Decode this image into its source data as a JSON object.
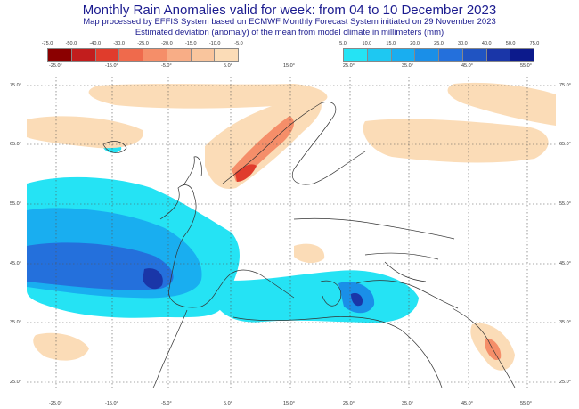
{
  "title": "Monthly Rain Anomalies valid for week: from 04 to 10 December 2023",
  "subtitle1": "Map processed by EFFIS System based on ECMWF Monthly Forecast System initiated on 29 November 2023",
  "subtitle2": "Estimated deviation (anomaly) of the mean from model climate in millimeters (mm)",
  "legend_negative": {
    "labels": [
      "-75.0",
      "-50.0",
      "-40.0",
      "-30.0",
      "-25.0",
      "-20.0",
      "-15.0",
      "-10.0",
      "-5.0"
    ],
    "colors": [
      "#8b0000",
      "#c21d1d",
      "#e03c2c",
      "#ef6a4c",
      "#f58e69",
      "#f8ad86",
      "#f9c59d",
      "#fbdcb7"
    ]
  },
  "legend_positive": {
    "labels": [
      "5.0",
      "10.0",
      "15.0",
      "20.0",
      "25.0",
      "30.0",
      "40.0",
      "50.0",
      "75.0"
    ],
    "colors": [
      "#25e3f4",
      "#1ec8f2",
      "#19aef0",
      "#1a8fe8",
      "#2470dc",
      "#2054c2",
      "#1a36a8",
      "#0c1a8c"
    ]
  },
  "axis": {
    "top_lons": [
      "-25.0°",
      "-15.0°",
      "-5.0°",
      "5.0°",
      "15.0°",
      "25.0°",
      "35.0°",
      "45.0°",
      "55.0°"
    ],
    "bottom_lons": [
      "-25.0°",
      "-15.0°",
      "-5.0°",
      "5.0°",
      "15.0°",
      "25.0°",
      "35.0°",
      "45.0°",
      "55.0°"
    ],
    "lats": [
      "75.0°",
      "65.0°",
      "55.0°",
      "45.0°",
      "35.0°",
      "25.0°"
    ]
  }
}
